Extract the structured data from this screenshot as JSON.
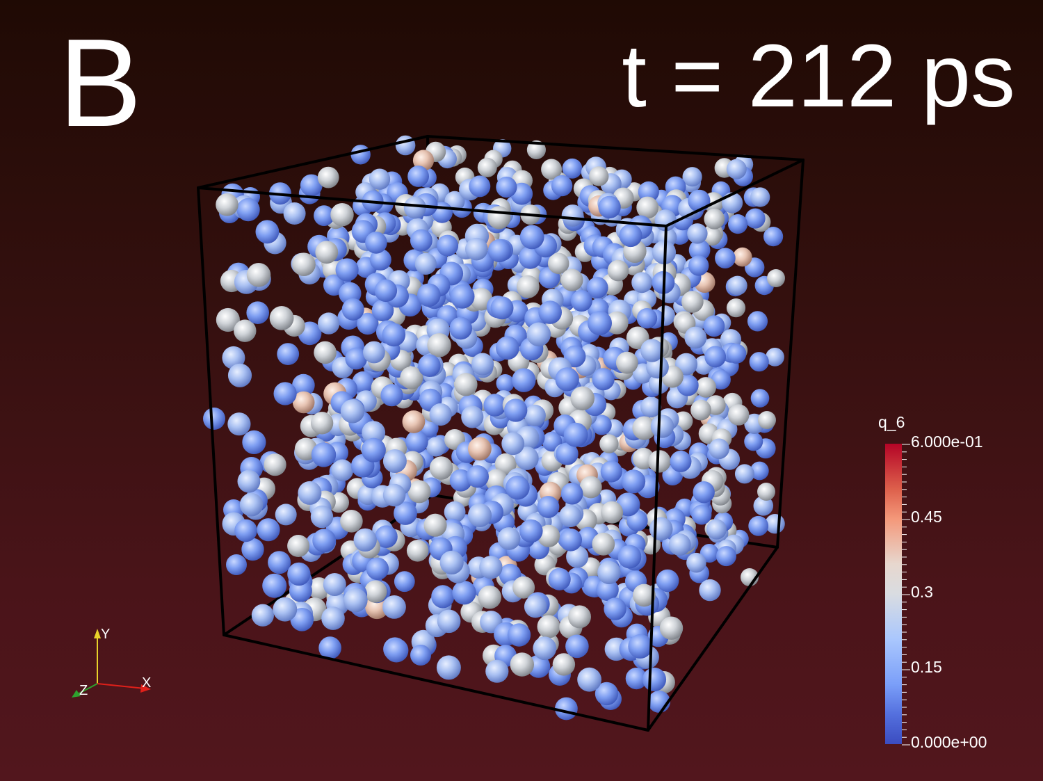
{
  "panel_label": "B",
  "time_label": "t = 212 ps",
  "colorbar": {
    "title": "q_6",
    "max_label": "6.000e-01",
    "min_label": "0.000e+00",
    "tick_labels": [
      "0.45",
      "0.3",
      "0.15"
    ],
    "range": [
      0,
      0.6
    ],
    "colormap": "cool-to-warm",
    "colors": [
      "#3b4cc0",
      "#7b9ff9",
      "#aac7fd",
      "#dddddd",
      "#f4987a",
      "#dd5f4b",
      "#b40426"
    ]
  },
  "axes_glyph": {
    "x_label": "X",
    "y_label": "Y",
    "z_label": "Z",
    "x_color": "#e0201a",
    "y_color": "#e8d22a",
    "z_color": "#2ea12e"
  },
  "background_colors": [
    "#1f0a04",
    "#52161d"
  ],
  "box_edge_color": "#000000"
}
